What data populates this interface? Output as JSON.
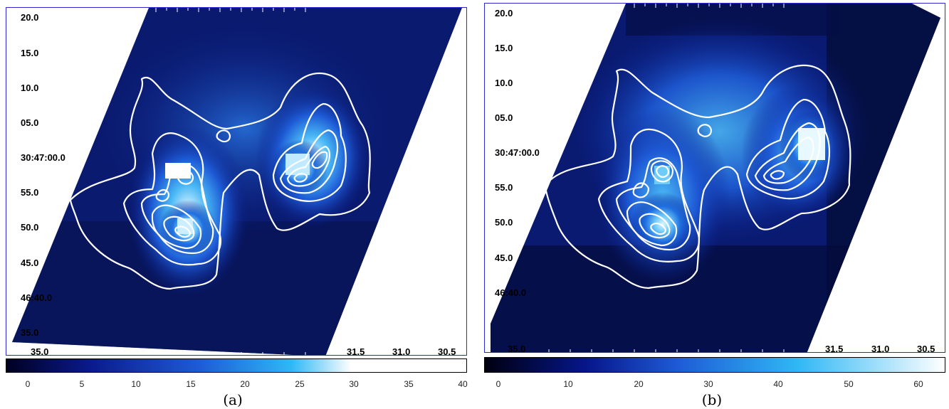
{
  "panels": [
    {
      "caption": "(a)",
      "dec_labels": [
        "20.0",
        "15.0",
        "10.0",
        "05.0",
        "30:47:00.0",
        "55.0",
        "50.0",
        "45.0",
        "46:40.0",
        "35.0"
      ],
      "ra_labels": [
        "35.0",
        "31.5",
        "31.0",
        "30.5"
      ],
      "colorbar_ticks": [
        "0",
        "5",
        "10",
        "15",
        "20",
        "25",
        "30",
        "35",
        "40"
      ],
      "colormap": [
        "#000022",
        "#0a1a8a",
        "#1e5bd6",
        "#2fb8f5",
        "#ffffff"
      ]
    },
    {
      "caption": "(b)",
      "dec_labels": [
        "20.0",
        "15.0",
        "10.0",
        "05.0",
        "30:47:00.0",
        "55.0",
        "50.0",
        "45.0",
        "46:40.0"
      ],
      "ra_labels": [
        "35.0",
        "31.5",
        "31.0",
        "30.5"
      ],
      "colorbar_ticks": [
        "0",
        "10",
        "20",
        "30",
        "40",
        "50",
        "60"
      ],
      "colormap": [
        "#000010",
        "#06168a",
        "#1e5bd6",
        "#2fb8f5",
        "#ffffff"
      ]
    }
  ]
}
